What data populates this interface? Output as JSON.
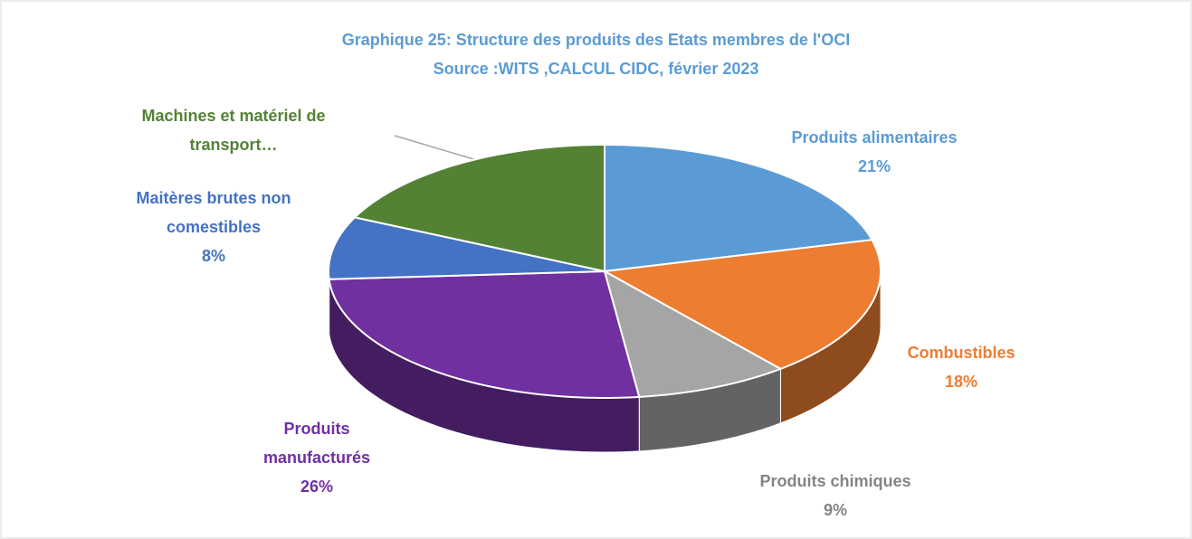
{
  "chart_data": {
    "type": "pie3d",
    "title": "Graphique 25: Structure des produits des Etats membres de l'OCI",
    "subtitle": "Source :WITS ,CALCUL CIDC, février 2023",
    "categories": [
      "Produits alimentaires",
      "Combustibles",
      "Produits chimiques",
      "Produits manufacturés",
      "Maitères brutes non comestibles",
      "Machines et matériel de transport…"
    ],
    "values": [
      21,
      18,
      9,
      26,
      8,
      18
    ],
    "value_labels": [
      "21%",
      "18%",
      "9%",
      "26%",
      "8%",
      null
    ],
    "colors": [
      "#5b9bd5",
      "#ed7d31",
      "#a5a5a5",
      "#7030a0",
      "#4472c4",
      "#548235"
    ]
  }
}
